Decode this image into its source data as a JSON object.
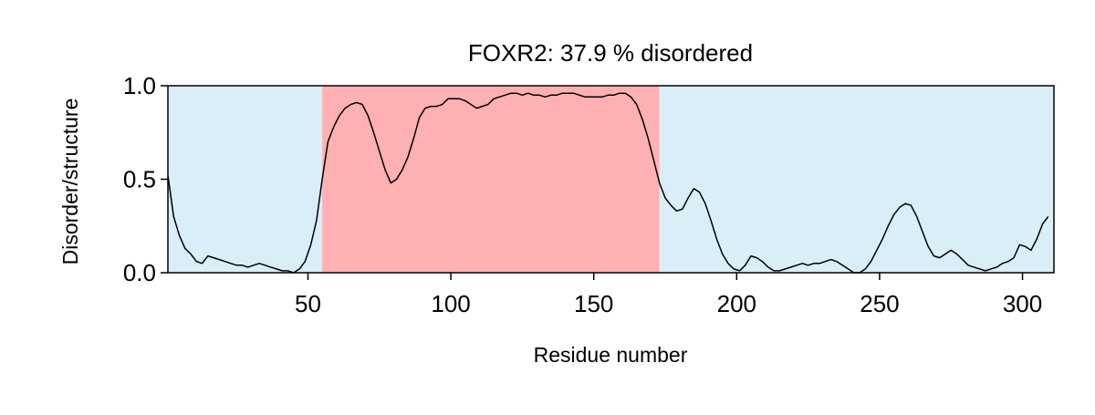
{
  "chart_data": {
    "type": "line",
    "title": "FOXR2: 37.9 % disordered",
    "xlabel": "Residue number",
    "ylabel": "Disorder/structure",
    "xlim": [
      1,
      311
    ],
    "ylim": [
      0,
      1
    ],
    "x_ticks": [
      50,
      100,
      150,
      200,
      250,
      300
    ],
    "y_ticks": [
      0,
      0.5,
      1
    ],
    "y_tick_labels": [
      "0.0",
      "0.5",
      "1.0"
    ],
    "regions": [
      {
        "start": 1,
        "end": 55,
        "kind": "structured",
        "color": "#d9eef7"
      },
      {
        "start": 55,
        "end": 173,
        "kind": "disordered",
        "color": "#ffb0b2"
      },
      {
        "start": 173,
        "end": 311,
        "kind": "structured",
        "color": "#d9eef7"
      }
    ],
    "line_color": "#000000",
    "grid": false,
    "series": [
      {
        "name": "",
        "points": [
          [
            1,
            0.52
          ],
          [
            3,
            0.3
          ],
          [
            5,
            0.2
          ],
          [
            7,
            0.13
          ],
          [
            9,
            0.1
          ],
          [
            11,
            0.06
          ],
          [
            13,
            0.05
          ],
          [
            15,
            0.09
          ],
          [
            17,
            0.08
          ],
          [
            19,
            0.07
          ],
          [
            21,
            0.06
          ],
          [
            23,
            0.05
          ],
          [
            25,
            0.04
          ],
          [
            27,
            0.04
          ],
          [
            29,
            0.03
          ],
          [
            31,
            0.04
          ],
          [
            33,
            0.05
          ],
          [
            35,
            0.04
          ],
          [
            37,
            0.03
          ],
          [
            39,
            0.02
          ],
          [
            41,
            0.01
          ],
          [
            43,
            0.01
          ],
          [
            45,
            0.0
          ],
          [
            47,
            0.02
          ],
          [
            49,
            0.06
          ],
          [
            51,
            0.15
          ],
          [
            53,
            0.28
          ],
          [
            55,
            0.5
          ],
          [
            57,
            0.7
          ],
          [
            59,
            0.78
          ],
          [
            61,
            0.84
          ],
          [
            63,
            0.88
          ],
          [
            65,
            0.9
          ],
          [
            67,
            0.91
          ],
          [
            69,
            0.9
          ],
          [
            71,
            0.84
          ],
          [
            73,
            0.75
          ],
          [
            75,
            0.65
          ],
          [
            77,
            0.55
          ],
          [
            79,
            0.48
          ],
          [
            81,
            0.5
          ],
          [
            83,
            0.55
          ],
          [
            85,
            0.62
          ],
          [
            87,
            0.72
          ],
          [
            89,
            0.83
          ],
          [
            91,
            0.88
          ],
          [
            93,
            0.89
          ],
          [
            95,
            0.89
          ],
          [
            97,
            0.9
          ],
          [
            99,
            0.93
          ],
          [
            101,
            0.93
          ],
          [
            103,
            0.93
          ],
          [
            105,
            0.92
          ],
          [
            107,
            0.9
          ],
          [
            109,
            0.88
          ],
          [
            111,
            0.89
          ],
          [
            113,
            0.9
          ],
          [
            115,
            0.93
          ],
          [
            117,
            0.94
          ],
          [
            119,
            0.95
          ],
          [
            121,
            0.96
          ],
          [
            123,
            0.96
          ],
          [
            125,
            0.95
          ],
          [
            127,
            0.96
          ],
          [
            129,
            0.95
          ],
          [
            131,
            0.95
          ],
          [
            133,
            0.94
          ],
          [
            135,
            0.95
          ],
          [
            137,
            0.95
          ],
          [
            139,
            0.96
          ],
          [
            141,
            0.96
          ],
          [
            143,
            0.96
          ],
          [
            145,
            0.95
          ],
          [
            147,
            0.94
          ],
          [
            149,
            0.94
          ],
          [
            151,
            0.94
          ],
          [
            153,
            0.94
          ],
          [
            155,
            0.95
          ],
          [
            157,
            0.95
          ],
          [
            159,
            0.96
          ],
          [
            161,
            0.96
          ],
          [
            163,
            0.94
          ],
          [
            165,
            0.9
          ],
          [
            167,
            0.82
          ],
          [
            169,
            0.72
          ],
          [
            171,
            0.6
          ],
          [
            173,
            0.48
          ],
          [
            175,
            0.4
          ],
          [
            177,
            0.36
          ],
          [
            179,
            0.33
          ],
          [
            181,
            0.34
          ],
          [
            183,
            0.4
          ],
          [
            185,
            0.45
          ],
          [
            187,
            0.43
          ],
          [
            189,
            0.37
          ],
          [
            191,
            0.28
          ],
          [
            193,
            0.18
          ],
          [
            195,
            0.1
          ],
          [
            197,
            0.05
          ],
          [
            199,
            0.02
          ],
          [
            201,
            0.01
          ],
          [
            203,
            0.04
          ],
          [
            205,
            0.09
          ],
          [
            207,
            0.08
          ],
          [
            209,
            0.06
          ],
          [
            211,
            0.03
          ],
          [
            213,
            0.01
          ],
          [
            215,
            0.01
          ],
          [
            217,
            0.02
          ],
          [
            219,
            0.03
          ],
          [
            221,
            0.04
          ],
          [
            223,
            0.05
          ],
          [
            225,
            0.04
          ],
          [
            227,
            0.05
          ],
          [
            229,
            0.05
          ],
          [
            231,
            0.06
          ],
          [
            233,
            0.07
          ],
          [
            235,
            0.06
          ],
          [
            237,
            0.04
          ],
          [
            239,
            0.02
          ],
          [
            241,
            0.0
          ],
          [
            243,
            0.0
          ],
          [
            245,
            0.02
          ],
          [
            247,
            0.06
          ],
          [
            249,
            0.12
          ],
          [
            251,
            0.18
          ],
          [
            253,
            0.25
          ],
          [
            255,
            0.31
          ],
          [
            257,
            0.35
          ],
          [
            259,
            0.37
          ],
          [
            261,
            0.36
          ],
          [
            263,
            0.3
          ],
          [
            265,
            0.22
          ],
          [
            267,
            0.14
          ],
          [
            269,
            0.09
          ],
          [
            271,
            0.08
          ],
          [
            273,
            0.1
          ],
          [
            275,
            0.12
          ],
          [
            277,
            0.1
          ],
          [
            279,
            0.07
          ],
          [
            281,
            0.04
          ],
          [
            283,
            0.03
          ],
          [
            285,
            0.02
          ],
          [
            287,
            0.01
          ],
          [
            289,
            0.02
          ],
          [
            291,
            0.03
          ],
          [
            293,
            0.05
          ],
          [
            295,
            0.06
          ],
          [
            297,
            0.08
          ],
          [
            299,
            0.15
          ],
          [
            301,
            0.14
          ],
          [
            303,
            0.12
          ],
          [
            305,
            0.18
          ],
          [
            307,
            0.26
          ],
          [
            309,
            0.3
          ]
        ]
      }
    ]
  }
}
